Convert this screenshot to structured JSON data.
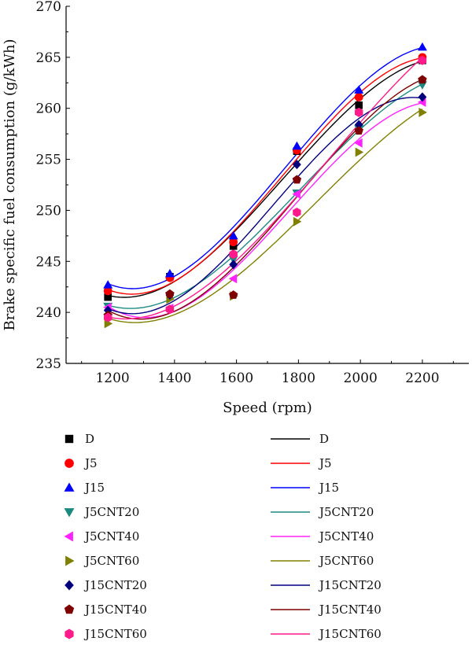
{
  "chart_data": {
    "type": "scatter",
    "xlabel": "Speed (rpm)",
    "ylabel": "Brake specific fuel consumption (g/kWh)",
    "xlim": [
      1050,
      2350
    ],
    "ylim": [
      235,
      270
    ],
    "x_ticks": [
      1200,
      1400,
      1600,
      1800,
      2000,
      2200
    ],
    "y_ticks": [
      235,
      240,
      245,
      250,
      255,
      260,
      265,
      270
    ],
    "x": [
      1185,
      1385,
      1590,
      1795,
      1995,
      2200
    ],
    "grid": false,
    "legend_position": "bottom",
    "series": [
      {
        "name": "D",
        "color": "#000000",
        "marker": "square",
        "values": [
          241.5,
          243.5,
          246.5,
          255.8,
          260.3,
          264.7
        ]
      },
      {
        "name": "J5",
        "color": "#ff0000",
        "marker": "circle",
        "values": [
          242.1,
          243.4,
          246.9,
          255.9,
          261.1,
          265.0
        ]
      },
      {
        "name": "J15",
        "color": "#0000ff",
        "marker": "triangle-up",
        "values": [
          242.7,
          243.8,
          247.5,
          256.3,
          261.8,
          266.0
        ]
      },
      {
        "name": "J5CNT20",
        "color": "#1a8a80",
        "marker": "triangle-down",
        "values": [
          240.6,
          241.6,
          245.2,
          251.7,
          258.0,
          262.3
        ]
      },
      {
        "name": "J5CNT40",
        "color": "#ff22ff",
        "marker": "triangle-left",
        "values": [
          240.5,
          240.4,
          243.3,
          251.6,
          256.6,
          260.6
        ]
      },
      {
        "name": "J5CNT60",
        "color": "#808000",
        "marker": "triangle-right",
        "values": [
          238.9,
          241.3,
          241.6,
          248.9,
          255.7,
          259.6
        ]
      },
      {
        "name": "J15CNT20",
        "color": "#00007f",
        "marker": "diamond",
        "values": [
          240.2,
          241.7,
          244.7,
          254.5,
          258.4,
          261.1
        ]
      },
      {
        "name": "J15CNT40",
        "color": "#7f0000",
        "marker": "pentagon",
        "values": [
          239.7,
          241.8,
          241.7,
          253.0,
          257.8,
          262.8
        ]
      },
      {
        "name": "J15CNT60",
        "color": "#ff1a8c",
        "marker": "hexagon",
        "values": [
          239.5,
          240.3,
          245.7,
          249.8,
          259.6,
          264.7
        ]
      }
    ]
  }
}
